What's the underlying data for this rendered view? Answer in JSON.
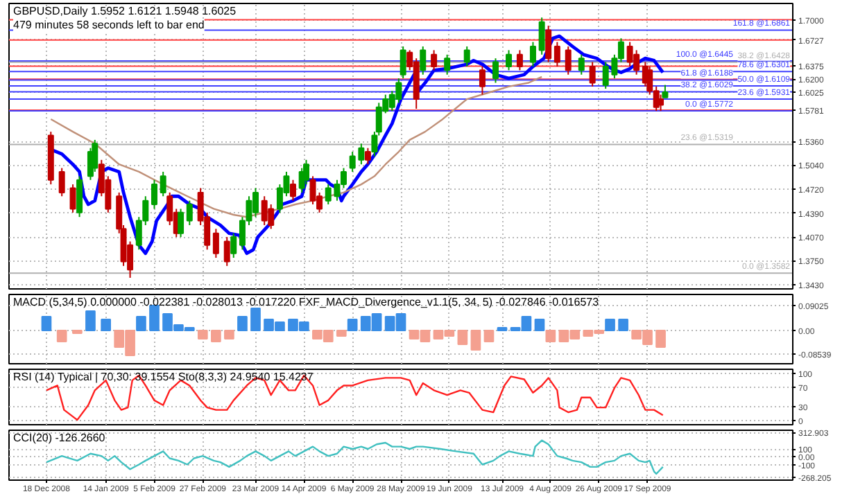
{
  "chart_data": [
    {
      "type": "candlestick",
      "title": "GBPUSD,Daily  1.5952 1.6121 1.5948 1.6025",
      "subtitle": "479 minutes 58 seconds left to bar end",
      "x": [
        "2008-12-20",
        "2008-12-25",
        "2008-12-30",
        "2009-01-02",
        "2009-01-07",
        "2009-01-09",
        "2009-01-12",
        "2009-01-15",
        "2009-01-20",
        "2009-01-22",
        "2009-01-25",
        "2009-01-29",
        "2009-02-01",
        "2009-02-05",
        "2009-02-09",
        "2009-02-12",
        "2009-02-15",
        "2009-02-17",
        "2009-02-21",
        "2009-02-26",
        "2009-03-01",
        "2009-03-05",
        "2009-03-10",
        "2009-03-13",
        "2009-03-17",
        "2009-03-20",
        "2009-03-23",
        "2009-03-27",
        "2009-03-30",
        "2009-04-03",
        "2009-04-06",
        "2009-04-09",
        "2009-04-13",
        "2009-04-15",
        "2009-04-18",
        "2009-04-21",
        "2009-04-25",
        "2009-04-29",
        "2009-05-02",
        "2009-05-06",
        "2009-05-10",
        "2009-05-13",
        "2009-05-16",
        "2009-05-18",
        "2009-05-21",
        "2009-05-24",
        "2009-05-27",
        "2009-05-29",
        "2009-06-01",
        "2009-06-04",
        "2009-06-07",
        "2009-06-12",
        "2009-06-18",
        "2009-06-27",
        "2009-07-04",
        "2009-07-10",
        "2009-07-16",
        "2009-07-21",
        "2009-07-27",
        "2009-07-31",
        "2009-08-03",
        "2009-08-07",
        "2009-08-12",
        "2009-08-18",
        "2009-08-23",
        "2009-08-29",
        "2009-09-02",
        "2009-09-05",
        "2009-09-09",
        "2009-09-12",
        "2009-09-16",
        "2009-09-18",
        "2009-09-21",
        "2009-09-23",
        "2009-09-25"
      ],
      "ohlc": [
        [
          1.544,
          1.549,
          1.478,
          1.484
        ],
        [
          1.495,
          1.5,
          1.462,
          1.467
        ],
        [
          1.473,
          1.478,
          1.44,
          1.445
        ],
        [
          1.44,
          1.489,
          1.434,
          1.484
        ],
        [
          1.489,
          1.527,
          1.484,
          1.522
        ],
        [
          1.5,
          1.538,
          1.495,
          1.533
        ],
        [
          1.505,
          1.511,
          1.462,
          1.467
        ],
        [
          1.484,
          1.489,
          1.44,
          1.445
        ],
        [
          1.462,
          1.467,
          1.412,
          1.418
        ],
        [
          1.418,
          1.423,
          1.368,
          1.374
        ],
        [
          1.396,
          1.401,
          1.352,
          1.363
        ],
        [
          1.396,
          1.434,
          1.39,
          1.429
        ],
        [
          1.429,
          1.462,
          1.423,
          1.456
        ],
        [
          1.451,
          1.484,
          1.445,
          1.478
        ],
        [
          1.467,
          1.495,
          1.462,
          1.489
        ],
        [
          1.462,
          1.467,
          1.423,
          1.429
        ],
        [
          1.44,
          1.445,
          1.407,
          1.412
        ],
        [
          1.412,
          1.445,
          1.407,
          1.44
        ],
        [
          1.429,
          1.456,
          1.423,
          1.451
        ],
        [
          1.467,
          1.473,
          1.423,
          1.429
        ],
        [
          1.434,
          1.44,
          1.39,
          1.396
        ],
        [
          1.412,
          1.418,
          1.379,
          1.385
        ],
        [
          1.401,
          1.407,
          1.368,
          1.374
        ],
        [
          1.385,
          1.412,
          1.379,
          1.407
        ],
        [
          1.396,
          1.434,
          1.39,
          1.429
        ],
        [
          1.429,
          1.462,
          1.423,
          1.456
        ],
        [
          1.44,
          1.473,
          1.434,
          1.467
        ],
        [
          1.456,
          1.462,
          1.423,
          1.429
        ],
        [
          1.445,
          1.451,
          1.418,
          1.423
        ],
        [
          1.445,
          1.478,
          1.44,
          1.473
        ],
        [
          1.467,
          1.495,
          1.462,
          1.489
        ],
        [
          1.478,
          1.484,
          1.456,
          1.462
        ],
        [
          1.473,
          1.5,
          1.467,
          1.495
        ],
        [
          1.484,
          1.511,
          1.478,
          1.505
        ],
        [
          1.484,
          1.489,
          1.451,
          1.456
        ],
        [
          1.462,
          1.467,
          1.44,
          1.445
        ],
        [
          1.456,
          1.478,
          1.451,
          1.473
        ],
        [
          1.462,
          1.484,
          1.456,
          1.478
        ],
        [
          1.478,
          1.5,
          1.473,
          1.495
        ],
        [
          1.5,
          1.522,
          1.495,
          1.516
        ],
        [
          1.511,
          1.533,
          1.505,
          1.527
        ],
        [
          1.522,
          1.527,
          1.505,
          1.511
        ],
        [
          1.522,
          1.549,
          1.516,
          1.544
        ],
        [
          1.549,
          1.588,
          1.544,
          1.582
        ],
        [
          1.577,
          1.599,
          1.574,
          1.593
        ],
        [
          1.582,
          1.604,
          1.577,
          1.599
        ],
        [
          1.593,
          1.621,
          1.588,
          1.615
        ],
        [
          1.626,
          1.664,
          1.621,
          1.659
        ],
        [
          1.656,
          1.659,
          1.632,
          1.637
        ],
        [
          1.643,
          1.648,
          1.58,
          1.593
        ],
        [
          1.632,
          1.664,
          1.626,
          1.659
        ],
        [
          1.653,
          1.659,
          1.632,
          1.637
        ],
        [
          1.632,
          1.653,
          1.626,
          1.648
        ],
        [
          1.643,
          1.664,
          1.637,
          1.659
        ],
        [
          1.632,
          1.637,
          1.599,
          1.61
        ],
        [
          1.621,
          1.648,
          1.615,
          1.643
        ],
        [
          1.637,
          1.659,
          1.632,
          1.653
        ],
        [
          1.653,
          1.659,
          1.632,
          1.637
        ],
        [
          1.643,
          1.67,
          1.637,
          1.664
        ],
        [
          1.659,
          1.703,
          1.653,
          1.697
        ],
        [
          1.686,
          1.692,
          1.643,
          1.648
        ],
        [
          1.664,
          1.67,
          1.637,
          1.643
        ],
        [
          1.659,
          1.664,
          1.626,
          1.632
        ],
        [
          1.632,
          1.653,
          1.626,
          1.648
        ],
        [
          1.637,
          1.643,
          1.61,
          1.615
        ],
        [
          1.612,
          1.643,
          1.607,
          1.637
        ],
        [
          1.626,
          1.653,
          1.621,
          1.648
        ],
        [
          1.648,
          1.675,
          1.643,
          1.67
        ],
        [
          1.664,
          1.67,
          1.637,
          1.643
        ],
        [
          1.653,
          1.659,
          1.626,
          1.632
        ],
        [
          1.637,
          1.643,
          1.61,
          1.615
        ],
        [
          1.632,
          1.637,
          1.599,
          1.604
        ],
        [
          1.604,
          1.61,
          1.577,
          1.582
        ],
        [
          1.593,
          1.599,
          1.577,
          1.585
        ],
        [
          1.5952,
          1.6121,
          1.5948,
          1.6025
        ]
      ],
      "colors": [
        "#c00000",
        "#c00000",
        "#c00000",
        "#00a000",
        "#00a000",
        "#00a000",
        "#c00000",
        "#c00000",
        "#c00000",
        "#c00000",
        "#c00000",
        "#00a000",
        "#00a000",
        "#00a000",
        "#00a000",
        "#c00000",
        "#c00000",
        "#00a000",
        "#00a000",
        "#c00000",
        "#c00000",
        "#c00000",
        "#c00000",
        "#00a000",
        "#00a000",
        "#00a000",
        "#00a000",
        "#c00000",
        "#c00000",
        "#00a000",
        "#00a000",
        "#c00000",
        "#00a000",
        "#00a000",
        "#c00000",
        "#c00000",
        "#00a000",
        "#00a000",
        "#00a000",
        "#00a000",
        "#00a000",
        "#c00000",
        "#00a000",
        "#00a000",
        "#00a000",
        "#00a000",
        "#00a000",
        "#00a000",
        "#c00000",
        "#c00000",
        "#00a000",
        "#c00000",
        "#00a000",
        "#00a000",
        "#c00000",
        "#00a000",
        "#00a000",
        "#c00000",
        "#00a000",
        "#00a000",
        "#c00000",
        "#c00000",
        "#c00000",
        "#00a000",
        "#c00000",
        "#00a000",
        "#00a000",
        "#00a000",
        "#c00000",
        "#c00000",
        "#c00000",
        "#c00000",
        "#c00000",
        "#c00000",
        "#00a000"
      ],
      "series": [
        {
          "type": "line",
          "color": "#0000ff",
          "x": [
            "2008-12-20",
            "2008-12-25",
            "2008-12-30",
            "2009-01-02",
            "2009-01-04",
            "2009-01-06",
            "2009-01-09",
            "2009-01-12",
            "2009-01-15",
            "2009-01-20",
            "2009-01-22",
            "2009-01-25",
            "2009-01-29",
            "2009-02-01",
            "2009-02-04",
            "2009-02-06",
            "2009-02-11",
            "2009-02-13",
            "2009-02-16",
            "2009-02-21",
            "2009-02-26",
            "2009-03-01",
            "2009-03-07",
            "2009-03-11",
            "2009-03-16",
            "2009-03-17",
            "2009-03-19",
            "2009-03-22",
            "2009-03-24",
            "2009-03-29",
            "2009-04-02",
            "2009-04-04",
            "2009-04-09",
            "2009-04-13",
            "2009-04-15",
            "2009-04-20",
            "2009-04-24",
            "2009-04-26",
            "2009-04-29",
            "2009-05-01",
            "2009-05-02",
            "2009-05-06",
            "2009-05-10",
            "2009-05-13",
            "2009-05-17",
            "2009-05-21",
            "2009-05-24",
            "2009-05-28",
            "2009-06-01",
            "2009-06-03",
            "2009-06-04",
            "2009-06-05",
            "2009-06-08",
            "2009-06-12",
            "2009-06-18",
            "2009-06-27",
            "2009-06-30",
            "2009-07-04",
            "2009-07-10",
            "2009-07-16",
            "2009-07-23",
            "2009-07-27",
            "2009-08-01",
            "2009-08-05",
            "2009-08-08",
            "2009-08-14",
            "2009-08-19",
            "2009-08-25",
            "2009-08-30",
            "2009-09-02",
            "2009-09-05",
            "2009-09-09",
            "2009-09-13",
            "2009-09-16",
            "2009-09-20",
            "2009-09-24"
          ],
          "values": [
            1.525,
            1.519,
            1.505,
            1.495,
            1.462,
            1.451,
            1.456,
            1.495,
            1.5,
            1.495,
            1.467,
            1.434,
            1.396,
            1.385,
            1.401,
            1.429,
            1.451,
            1.462,
            1.462,
            1.451,
            1.445,
            1.434,
            1.423,
            1.412,
            1.409,
            1.396,
            1.385,
            1.39,
            1.407,
            1.423,
            1.44,
            1.451,
            1.456,
            1.462,
            1.484,
            1.484,
            1.484,
            1.478,
            1.473,
            1.456,
            1.462,
            1.478,
            1.495,
            1.505,
            1.522,
            1.544,
            1.56,
            1.593,
            1.615,
            1.626,
            1.621,
            1.604,
            1.615,
            1.632,
            1.634,
            1.64,
            1.645,
            1.64,
            1.626,
            1.621,
            1.626,
            1.637,
            1.648,
            1.675,
            1.678,
            1.664,
            1.653,
            1.648,
            1.637,
            1.632,
            1.629,
            1.634,
            1.643,
            1.648,
            1.645,
            1.629
          ]
        },
        {
          "type": "line",
          "color": "#c09078",
          "x": [
            "2008-12-20",
            "2008-12-30",
            "2009-01-09",
            "2009-01-20",
            "2009-01-29",
            "2009-02-09",
            "2009-02-20",
            "2009-03-04",
            "2009-03-13",
            "2009-03-19",
            "2009-03-27",
            "2009-04-03",
            "2009-04-10",
            "2009-04-18",
            "2009-04-25",
            "2009-05-02",
            "2009-05-10",
            "2009-05-16",
            "2009-05-21",
            "2009-05-27",
            "2009-06-01",
            "2009-06-08",
            "2009-06-16",
            "2009-06-27",
            "2009-07-06",
            "2009-07-16",
            "2009-07-25",
            "2009-07-31"
          ],
          "values": [
            1.566,
            1.549,
            1.533,
            1.505,
            1.495,
            1.478,
            1.462,
            1.445,
            1.437,
            1.434,
            1.44,
            1.445,
            1.451,
            1.456,
            1.462,
            1.467,
            1.478,
            1.489,
            1.505,
            1.522,
            1.538,
            1.549,
            1.566,
            1.593,
            1.601,
            1.61,
            1.615,
            1.623
          ]
        }
      ],
      "ref_lines": [
        {
          "axis": "y",
          "value": 1.7,
          "color": "#ff4040"
        },
        {
          "axis": "y",
          "value": 1.6727,
          "color": "#ff4040"
        },
        {
          "axis": "y",
          "value": 1.6375,
          "color": "#ff4040"
        },
        {
          "axis": "y",
          "value": 1.62,
          "color": "#ff4040"
        },
        {
          "axis": "y",
          "value": 1.5781,
          "color": "#ff4040"
        },
        {
          "axis": "y",
          "value": 1.6861,
          "label": "161.8 @1.6861",
          "color": "#4040ff"
        },
        {
          "axis": "y",
          "value": 1.6445,
          "label": "100.0 @1.6445",
          "color": "#4040ff"
        },
        {
          "axis": "y",
          "value": 1.6301,
          "label": "78.6 @1.6301",
          "color": "#4040ff"
        },
        {
          "axis": "y",
          "value": 1.6188,
          "label": "61.8 @1.6188",
          "color": "#4040ff"
        },
        {
          "axis": "y",
          "value": 1.6109,
          "label": "50.0 @1.6109",
          "color": "#4040ff"
        },
        {
          "axis": "y",
          "value": 1.6029,
          "label": "38.2 @1.6029",
          "color": "#4040ff"
        },
        {
          "axis": "y",
          "value": 1.5931,
          "label": "23.6 @1.5931",
          "color": "#4040ff"
        },
        {
          "axis": "y",
          "value": 1.5772,
          "label": "0.0 @1.5772",
          "color": "#4040ff"
        },
        {
          "axis": "y",
          "value": 1.6428,
          "label": "38.2 @1.6428",
          "color": "#b0b0b0"
        },
        {
          "axis": "y",
          "value": 1.5319,
          "label": "23.6 @1.5319",
          "color": "#b0b0b0"
        },
        {
          "axis": "y",
          "value": 1.3582,
          "label": "0.0 @1.3582",
          "color": "#b0b0b0"
        }
      ],
      "xlim": [
        "2008-12-01",
        "2009-11-22"
      ],
      "ylim": [
        1.337,
        1.722
      ],
      "xticks": [
        "2008-12-18",
        "2009-01-14",
        "2009-02-05",
        "2009-02-27",
        "2009-03-23",
        "2009-04-14",
        "2009-05-06",
        "2009-05-28",
        "2009-06-19",
        "2009-07-13",
        "2009-08-04",
        "2009-08-26",
        "2009-09-17"
      ],
      "yticks": [
        {
          "value": 1.343,
          "label": "1.3430"
        },
        {
          "value": 1.375,
          "label": "1.3750"
        },
        {
          "value": 1.407,
          "label": "1.4070"
        },
        {
          "value": 1.439,
          "label": "1.4390"
        },
        {
          "value": 1.472,
          "label": "1.4720"
        },
        {
          "value": 1.504,
          "label": "1.5040"
        },
        {
          "value": 1.536,
          "label": "1.5360"
        },
        {
          "value": 1.5781,
          "label": "1.5781"
        },
        {
          "value": 1.6025,
          "label": "1.6025"
        },
        {
          "value": 1.62,
          "label": "1.6200"
        },
        {
          "value": 1.6375,
          "label": "1.6375"
        },
        {
          "value": 1.6727,
          "label": "1.6727"
        },
        {
          "value": 1.7,
          "label": "1.7000"
        }
      ],
      "grid": true,
      "tick_labels": "y"
    },
    {
      "type": "bar",
      "title": "MACD (5,34,5) 0.000000 -0.022381 -0.028013 -0.017220  FXF_MACD_Divergence_v1.1(5, 34, 5) -0.027846 -0.016573",
      "x": [
        "2008-12-18",
        "2008-12-25",
        "2009-01-01",
        "2009-01-07",
        "2009-01-14",
        "2009-01-20",
        "2009-01-25",
        "2009-01-30",
        "2009-02-05",
        "2009-02-11",
        "2009-02-16",
        "2009-02-21",
        "2009-02-27",
        "2009-03-05",
        "2009-03-11",
        "2009-03-17",
        "2009-03-23",
        "2009-03-29",
        "2009-04-03",
        "2009-04-09",
        "2009-04-14",
        "2009-04-20",
        "2009-04-25",
        "2009-05-01",
        "2009-05-06",
        "2009-05-12",
        "2009-05-17",
        "2009-05-23",
        "2009-05-28",
        "2009-06-03",
        "2009-06-08",
        "2009-06-14",
        "2009-06-19",
        "2009-06-25",
        "2009-07-01",
        "2009-07-07",
        "2009-07-13",
        "2009-07-19",
        "2009-07-24",
        "2009-07-30",
        "2009-08-04",
        "2009-08-10",
        "2009-08-15",
        "2009-08-21",
        "2009-08-26",
        "2009-08-31",
        "2009-09-06",
        "2009-09-12",
        "2009-09-17",
        "2009-09-23"
      ],
      "values": [
        0.05,
        -0.04,
        -0.01,
        0.07,
        0.04,
        -0.06,
        -0.09,
        0.05,
        0.09,
        0.06,
        0.02,
        0.01,
        -0.03,
        -0.04,
        -0.03,
        0.05,
        0.08,
        0.04,
        0.03,
        0.04,
        0.03,
        -0.03,
        -0.04,
        -0.02,
        0.04,
        0.05,
        0.06,
        0.05,
        0.06,
        -0.03,
        -0.04,
        -0.03,
        -0.02,
        -0.05,
        -0.07,
        -0.04,
        0.01,
        0.01,
        0.05,
        0.04,
        -0.04,
        -0.04,
        -0.03,
        -0.02,
        -0.01,
        0.04,
        0.04,
        -0.03,
        -0.05,
        -0.06
      ],
      "colors": [
        "#3a8ee6",
        "#f4a090",
        "#f4a090",
        "#3a8ee6",
        "#3a8ee6",
        "#f4a090",
        "#f4a090",
        "#3a8ee6",
        "#3a8ee6",
        "#3a8ee6",
        "#3a8ee6",
        "#3a8ee6",
        "#f4a090",
        "#f4a090",
        "#f4a090",
        "#3a8ee6",
        "#3a8ee6",
        "#3a8ee6",
        "#3a8ee6",
        "#3a8ee6",
        "#3a8ee6",
        "#f4a090",
        "#f4a090",
        "#f4a090",
        "#3a8ee6",
        "#3a8ee6",
        "#3a8ee6",
        "#3a8ee6",
        "#3a8ee6",
        "#f4a090",
        "#f4a090",
        "#f4a090",
        "#f4a090",
        "#f4a090",
        "#f4a090",
        "#f4a090",
        "#3a8ee6",
        "#3a8ee6",
        "#3a8ee6",
        "#3a8ee6",
        "#f4a090",
        "#f4a090",
        "#f4a090",
        "#f4a090",
        "#f4a090",
        "#3a8ee6",
        "#3a8ee6",
        "#f4a090",
        "#f4a090",
        "#f4a090"
      ],
      "xlim": [
        "2008-12-01",
        "2009-11-22"
      ],
      "ylim": [
        -0.12,
        0.13
      ],
      "xticks": [
        "2008-12-18",
        "2009-01-14",
        "2009-02-05",
        "2009-02-27",
        "2009-03-23",
        "2009-04-14",
        "2009-05-06",
        "2009-05-28",
        "2009-06-19",
        "2009-07-13",
        "2009-08-04",
        "2009-08-26",
        "2009-09-17"
      ],
      "yticks": [
        {
          "value": 0.09025,
          "label": "0.09025"
        },
        {
          "value": 0,
          "label": "0.00"
        },
        {
          "value": -0.08539,
          "label": "-0.08539"
        }
      ],
      "grid": true,
      "tick_labels": "y"
    },
    {
      "type": "line",
      "title": "RSI (14) Typical | 70,30: 39.1554  Sto(8,3,3) 24.9540 15.4237",
      "series": [
        {
          "color": "#ff2020",
          "x": [
            "2008-12-18",
            "2008-12-23",
            "2008-12-26",
            "2009-01-01",
            "2009-01-06",
            "2009-01-09",
            "2009-01-14",
            "2009-01-18",
            "2009-01-21",
            "2009-01-24",
            "2009-01-26",
            "2009-01-29",
            "2009-02-01",
            "2009-02-05",
            "2009-02-09",
            "2009-02-12",
            "2009-02-17",
            "2009-02-21",
            "2009-02-26",
            "2009-03-01",
            "2009-03-05",
            "2009-03-10",
            "2009-03-13",
            "2009-03-19",
            "2009-03-23",
            "2009-03-27",
            "2009-03-30",
            "2009-04-03",
            "2009-04-07",
            "2009-04-10",
            "2009-04-14",
            "2009-04-18",
            "2009-04-21",
            "2009-04-25",
            "2009-04-29",
            "2009-05-02",
            "2009-05-06",
            "2009-05-13",
            "2009-05-21",
            "2009-05-28",
            "2009-06-01",
            "2009-06-04",
            "2009-06-07",
            "2009-06-12",
            "2009-06-18",
            "2009-06-24",
            "2009-06-28",
            "2009-07-04",
            "2009-07-09",
            "2009-07-14",
            "2009-07-17",
            "2009-07-23",
            "2009-07-27",
            "2009-07-31",
            "2009-08-03",
            "2009-08-07",
            "2009-08-08",
            "2009-08-12",
            "2009-08-16",
            "2009-08-18",
            "2009-08-22",
            "2009-08-25",
            "2009-08-29",
            "2009-09-02",
            "2009-09-05",
            "2009-09-09",
            "2009-09-13",
            "2009-09-16",
            "2009-09-20",
            "2009-09-24"
          ],
          "values": [
            64,
            74,
            23,
            2,
            33,
            64,
            85,
            43,
            23,
            28,
            85,
            95,
            74,
            43,
            33,
            64,
            85,
            74,
            43,
            28,
            23,
            23,
            43,
            74,
            90,
            85,
            54,
            85,
            64,
            64,
            95,
            74,
            33,
            43,
            64,
            74,
            74,
            85,
            90,
            90,
            85,
            54,
            79,
            64,
            54,
            64,
            59,
            23,
            18,
            74,
            93,
            87,
            59,
            74,
            90,
            64,
            28,
            18,
            23,
            49,
            49,
            28,
            28,
            69,
            90,
            85,
            54,
            23,
            23,
            12
          ]
        }
      ],
      "xlim": [
        "2008-12-01",
        "2009-11-22"
      ],
      "ylim": [
        -8,
        108
      ],
      "xticks": [
        "2008-12-18",
        "2009-01-14",
        "2009-02-05",
        "2009-02-27",
        "2009-03-23",
        "2009-04-14",
        "2009-05-06",
        "2009-05-28",
        "2009-06-19",
        "2009-07-13",
        "2009-08-04",
        "2009-08-26",
        "2009-09-17"
      ],
      "yticks": [
        100,
        70,
        30,
        0
      ],
      "grid": true,
      "tick_labels": "y"
    },
    {
      "type": "line",
      "title": "CCI(20) -126.2660",
      "series": [
        {
          "color": "#40c0c0",
          "x": [
            "2008-12-18",
            "2008-12-25",
            "2009-01-01",
            "2009-01-07",
            "2009-01-12",
            "2009-01-15",
            "2009-01-18",
            "2009-01-21",
            "2009-01-25",
            "2009-01-29",
            "2009-02-01",
            "2009-02-05",
            "2009-02-09",
            "2009-02-12",
            "2009-02-16",
            "2009-02-20",
            "2009-02-23",
            "2009-02-27",
            "2009-03-04",
            "2009-03-07",
            "2009-03-11",
            "2009-03-16",
            "2009-03-19",
            "2009-03-23",
            "2009-03-27",
            "2009-03-30",
            "2009-04-03",
            "2009-04-07",
            "2009-04-10",
            "2009-04-14",
            "2009-04-18",
            "2009-04-21",
            "2009-04-25",
            "2009-04-29",
            "2009-05-02",
            "2009-05-06",
            "2009-05-10",
            "2009-05-13",
            "2009-05-17",
            "2009-05-21",
            "2009-05-24",
            "2009-05-28",
            "2009-06-01",
            "2009-06-04",
            "2009-06-07",
            "2009-06-15",
            "2009-06-22",
            "2009-06-30",
            "2009-07-04",
            "2009-07-09",
            "2009-07-12",
            "2009-07-16",
            "2009-07-21",
            "2009-07-27",
            "2009-07-28",
            "2009-07-31",
            "2009-08-03",
            "2009-08-07",
            "2009-08-11",
            "2009-08-14",
            "2009-08-18",
            "2009-08-22",
            "2009-08-25",
            "2009-08-29",
            "2009-09-02",
            "2009-09-05",
            "2009-09-09",
            "2009-09-13",
            "2009-09-16",
            "2009-09-18",
            "2009-09-20",
            "2009-09-21",
            "2009-09-24"
          ],
          "values": [
            -70,
            10,
            -50,
            40,
            10,
            -50,
            10,
            -70,
            -160,
            -100,
            -50,
            10,
            70,
            -20,
            -50,
            -100,
            -20,
            10,
            -50,
            -70,
            -130,
            -50,
            10,
            70,
            10,
            -50,
            10,
            70,
            10,
            70,
            130,
            70,
            10,
            40,
            130,
            100,
            130,
            100,
            160,
            180,
            130,
            130,
            100,
            130,
            130,
            100,
            70,
            40,
            -100,
            -50,
            10,
            70,
            40,
            10,
            130,
            210,
            160,
            10,
            -20,
            -50,
            -70,
            -130,
            -130,
            -70,
            -50,
            10,
            40,
            -50,
            -70,
            -50,
            -190,
            -220,
            -130
          ]
        }
      ],
      "xlim": [
        "2008-12-01",
        "2009-11-22"
      ],
      "ylim": [
        -300,
        340
      ],
      "xticks": [
        {
          "value": "2008-12-18",
          "label": "18 Dec 2008"
        },
        {
          "value": "2009-01-14",
          "label": "14 Jan 2009"
        },
        {
          "value": "2009-02-05",
          "label": "5 Feb 2009"
        },
        {
          "value": "2009-02-27",
          "label": "27 Feb 2009"
        },
        {
          "value": "2009-03-23",
          "label": "23 Mar 2009"
        },
        {
          "value": "2009-04-14",
          "label": "14 Apr 2009"
        },
        {
          "value": "2009-05-06",
          "label": "6 May 2009"
        },
        {
          "value": "2009-05-28",
          "label": "28 May 2009"
        },
        {
          "value": "2009-06-19",
          "label": "19 Jun 2009"
        },
        {
          "value": "2009-07-13",
          "label": "13 Jul 2009"
        },
        {
          "value": "2009-08-04",
          "label": "4 Aug 2009"
        },
        {
          "value": "2009-08-26",
          "label": "26 Aug 2009"
        },
        {
          "value": "2009-09-17",
          "label": "17 Sep 2009"
        }
      ],
      "yticks": [
        {
          "value": 312.903,
          "label": "312.903"
        },
        {
          "value": 100,
          "label": "100"
        },
        {
          "value": 0,
          "label": "0.00"
        },
        {
          "value": -100,
          "label": "-100"
        },
        {
          "value": -268.205,
          "label": "-268.205"
        }
      ],
      "grid": true
    }
  ]
}
